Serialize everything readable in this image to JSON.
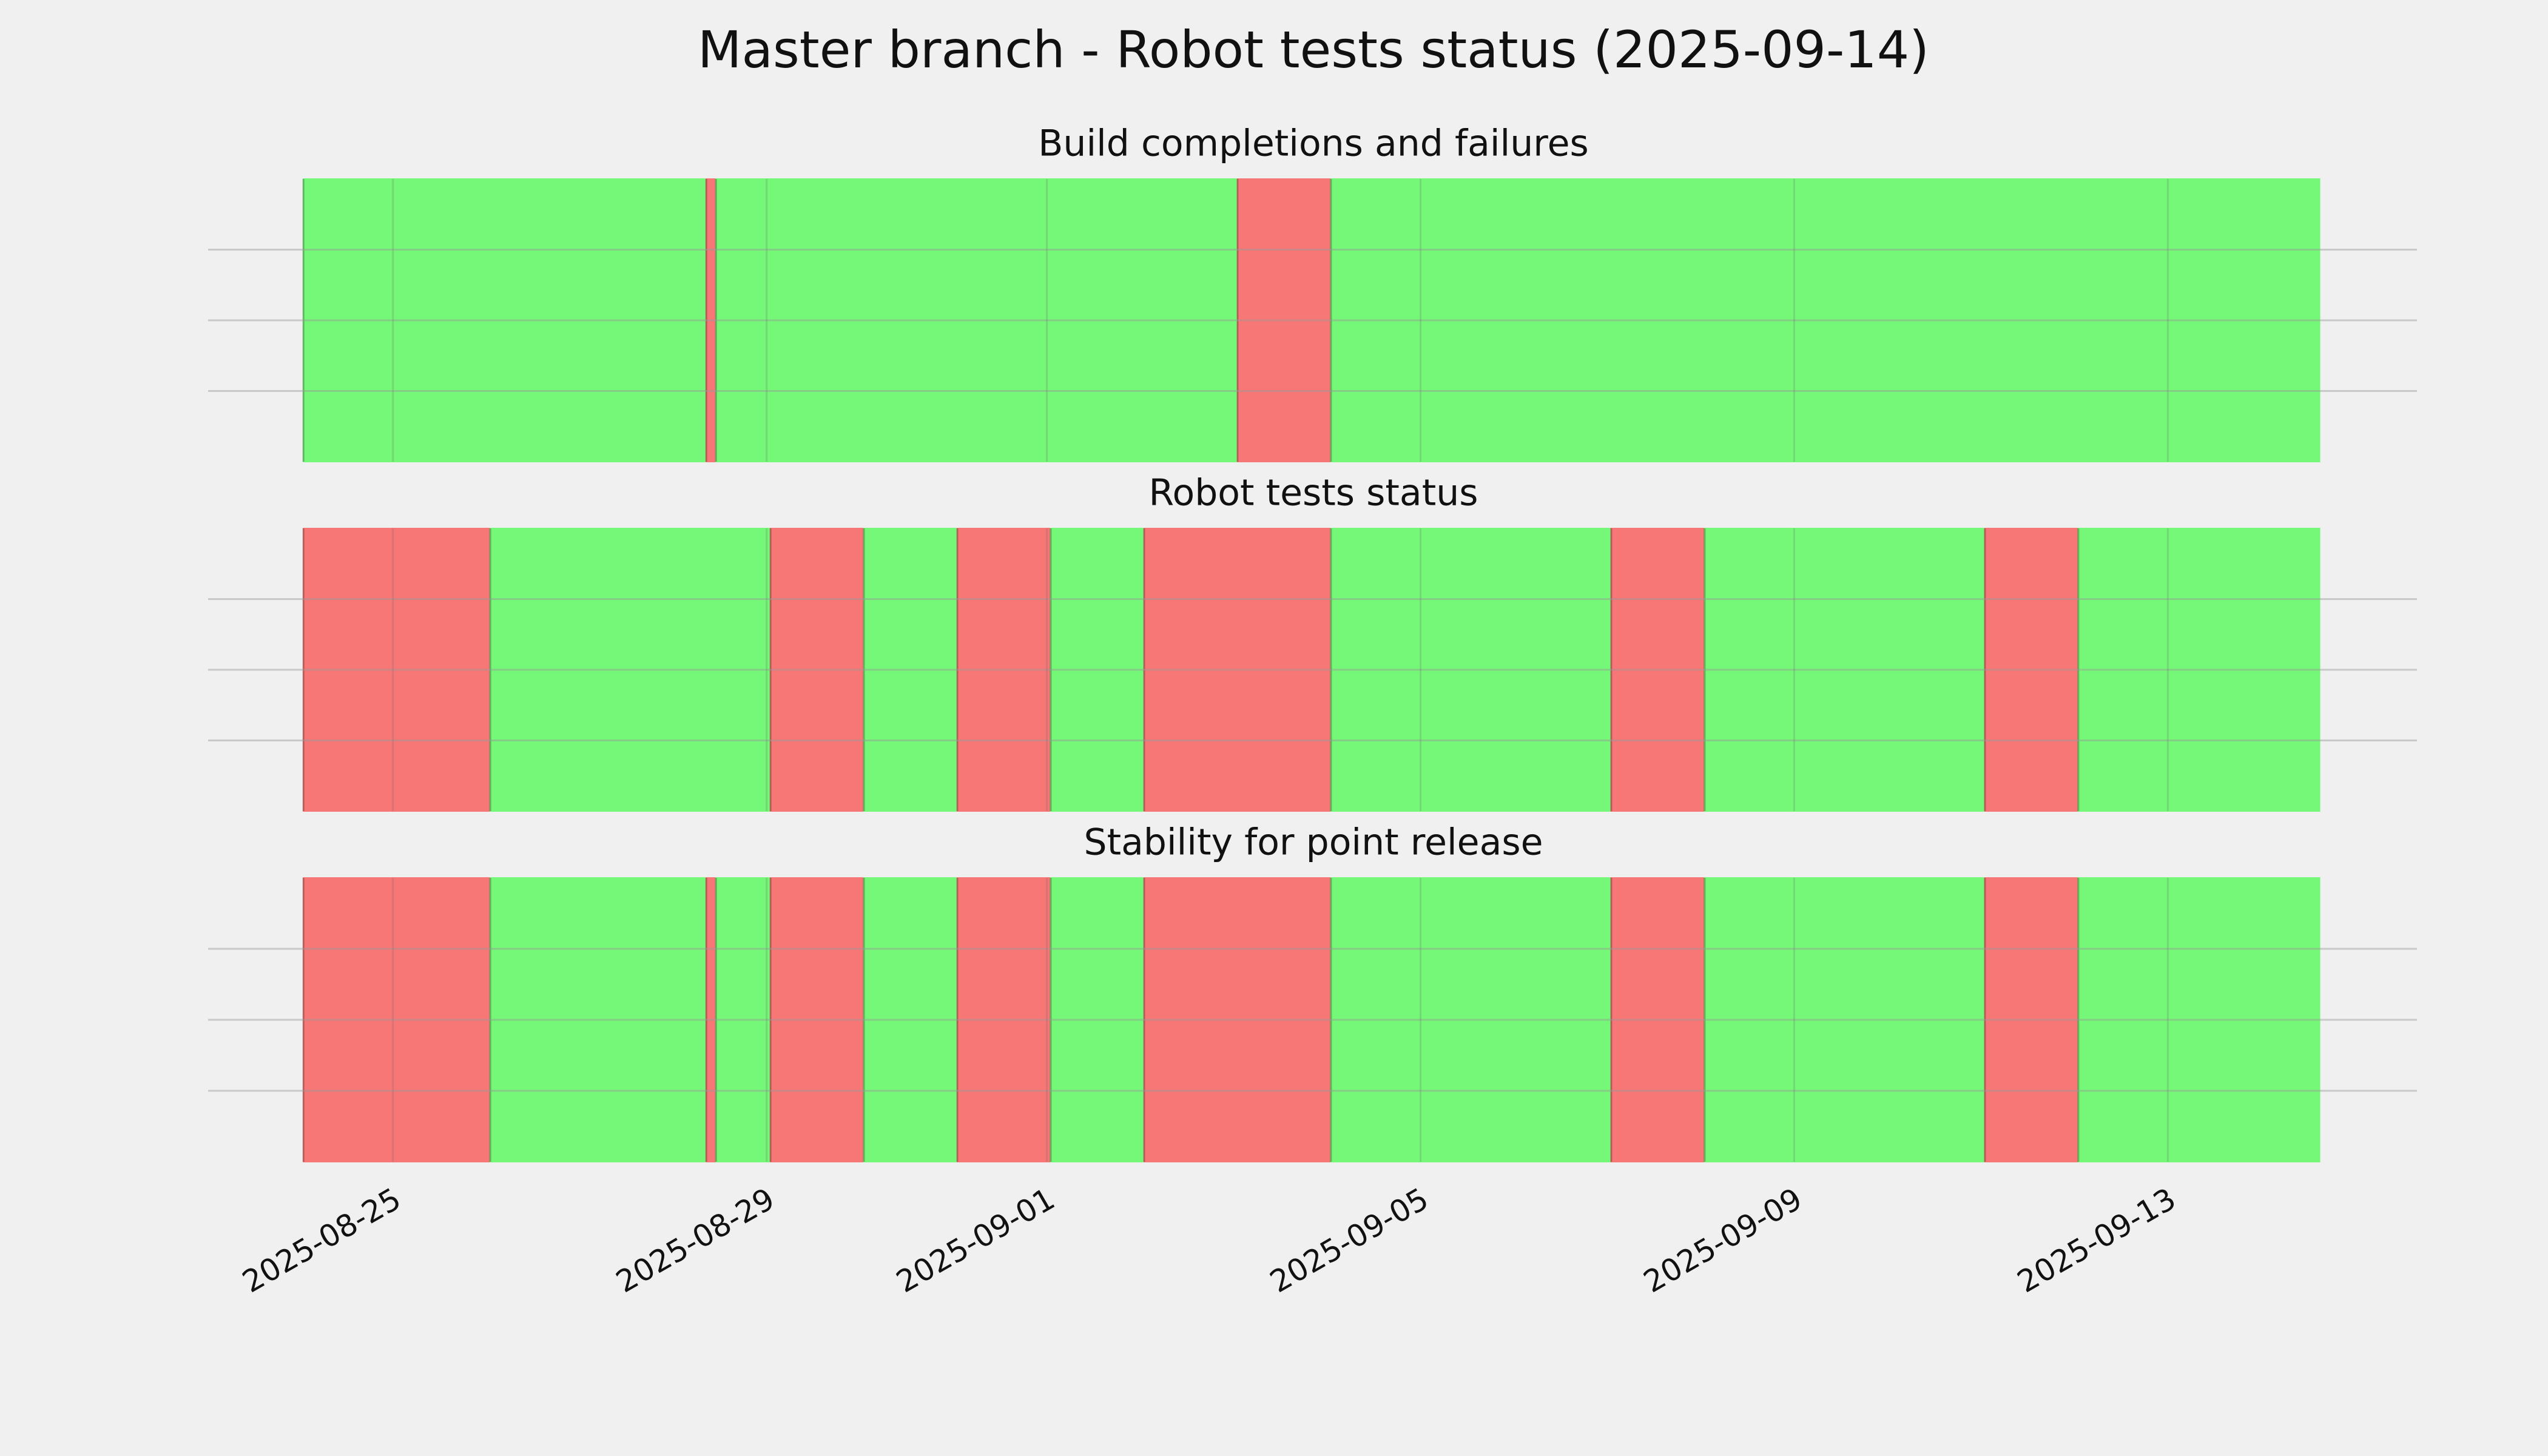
{
  "title": "Master branch - Robot tests status (2025-09-14)",
  "chart_data": [
    {
      "type": "timeline",
      "title": "Build completions and failures",
      "xlim": [
        "2025-08-23T00:30",
        "2025-09-15T16:00"
      ],
      "xticks": [
        "2025-08-25",
        "2025-08-29",
        "2025-09-01",
        "2025-09-05",
        "2025-09-09",
        "2025-09-13"
      ],
      "ylim": [
        0,
        1
      ],
      "yticks": [
        0.25,
        0.5,
        0.75
      ],
      "grid": true,
      "segments": [
        {
          "start": "2025-08-24T01:00",
          "end": "2025-08-28T08:30",
          "color": "#75f777"
        },
        {
          "start": "2025-08-28T08:30",
          "end": "2025-08-28T11:00",
          "color": "#f77777"
        },
        {
          "start": "2025-08-28T11:00",
          "end": "2025-09-03T01:00",
          "color": "#75f777"
        },
        {
          "start": "2025-09-03T01:00",
          "end": "2025-09-04T01:00",
          "color": "#f77777"
        },
        {
          "start": "2025-09-04T01:00",
          "end": "2025-09-14T15:00",
          "color": "#75f777"
        }
      ]
    },
    {
      "type": "timeline",
      "title": "Robot tests status",
      "xlim": [
        "2025-08-23T00:30",
        "2025-09-15T16:00"
      ],
      "xticks": [
        "2025-08-25",
        "2025-08-29",
        "2025-09-01",
        "2025-09-05",
        "2025-09-09",
        "2025-09-13"
      ],
      "ylim": [
        0,
        1
      ],
      "yticks": [
        0.25,
        0.5,
        0.75
      ],
      "grid": true,
      "segments": [
        {
          "start": "2025-08-24T01:00",
          "end": "2025-08-26T01:00",
          "color": "#f77777"
        },
        {
          "start": "2025-08-26T01:00",
          "end": "2025-08-29T01:00",
          "color": "#75f777"
        },
        {
          "start": "2025-08-29T01:00",
          "end": "2025-08-30T01:00",
          "color": "#f77777"
        },
        {
          "start": "2025-08-30T01:00",
          "end": "2025-08-31T01:00",
          "color": "#75f777"
        },
        {
          "start": "2025-08-31T01:00",
          "end": "2025-09-01T01:00",
          "color": "#f77777"
        },
        {
          "start": "2025-09-01T01:00",
          "end": "2025-09-02T01:00",
          "color": "#75f777"
        },
        {
          "start": "2025-09-02T01:00",
          "end": "2025-09-04T01:00",
          "color": "#f77777"
        },
        {
          "start": "2025-09-04T01:00",
          "end": "2025-09-07T01:00",
          "color": "#75f777"
        },
        {
          "start": "2025-09-07T01:00",
          "end": "2025-09-08T01:00",
          "color": "#f77777"
        },
        {
          "start": "2025-09-08T01:00",
          "end": "2025-09-11T01:00",
          "color": "#75f777"
        },
        {
          "start": "2025-09-11T01:00",
          "end": "2025-09-12T01:00",
          "color": "#f77777"
        },
        {
          "start": "2025-09-12T01:00",
          "end": "2025-09-14T15:00",
          "color": "#75f777"
        }
      ]
    },
    {
      "type": "timeline",
      "title": "Stability for point release",
      "xlim": [
        "2025-08-23T00:30",
        "2025-09-15T16:00"
      ],
      "xticks": [
        "2025-08-25",
        "2025-08-29",
        "2025-09-01",
        "2025-09-05",
        "2025-09-09",
        "2025-09-13"
      ],
      "ylim": [
        0,
        1
      ],
      "yticks": [
        0.25,
        0.5,
        0.75
      ],
      "grid": true,
      "segments": [
        {
          "start": "2025-08-24T01:00",
          "end": "2025-08-26T01:00",
          "color": "#f77777"
        },
        {
          "start": "2025-08-26T01:00",
          "end": "2025-08-28T08:30",
          "color": "#75f777"
        },
        {
          "start": "2025-08-28T08:30",
          "end": "2025-08-28T11:00",
          "color": "#f77777"
        },
        {
          "start": "2025-08-28T11:00",
          "end": "2025-08-29T01:00",
          "color": "#75f777"
        },
        {
          "start": "2025-08-29T01:00",
          "end": "2025-08-30T01:00",
          "color": "#f77777"
        },
        {
          "start": "2025-08-30T01:00",
          "end": "2025-08-31T01:00",
          "color": "#75f777"
        },
        {
          "start": "2025-08-31T01:00",
          "end": "2025-09-01T01:00",
          "color": "#f77777"
        },
        {
          "start": "2025-09-01T01:00",
          "end": "2025-09-02T01:00",
          "color": "#75f777"
        },
        {
          "start": "2025-09-02T01:00",
          "end": "2025-09-04T01:00",
          "color": "#f77777"
        },
        {
          "start": "2025-09-04T01:00",
          "end": "2025-09-07T01:00",
          "color": "#75f777"
        },
        {
          "start": "2025-09-07T01:00",
          "end": "2025-09-08T01:00",
          "color": "#f77777"
        },
        {
          "start": "2025-09-08T01:00",
          "end": "2025-09-11T01:00",
          "color": "#75f777"
        },
        {
          "start": "2025-09-11T01:00",
          "end": "2025-09-12T01:00",
          "color": "#f77777"
        },
        {
          "start": "2025-09-12T01:00",
          "end": "2025-09-14T15:00",
          "color": "#75f777"
        }
      ]
    }
  ]
}
